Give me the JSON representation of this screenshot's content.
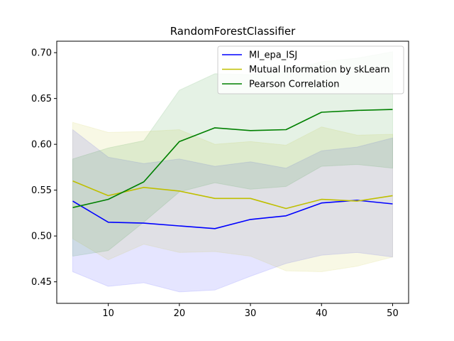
{
  "chart_data": {
    "type": "line",
    "title": "RandomForestClassifier",
    "xlabel": "",
    "ylabel": "",
    "xlim": [
      2.75,
      52.25
    ],
    "ylim": [
      0.4265,
      0.7125
    ],
    "x": [
      5,
      10,
      15,
      20,
      25,
      30,
      35,
      40,
      45,
      50
    ],
    "xticks": [
      10,
      20,
      30,
      40,
      50
    ],
    "yticks": [
      0.45,
      0.5,
      0.55,
      0.6,
      0.65,
      0.7
    ],
    "ytick_labels": [
      "0.45",
      "0.50",
      "0.55",
      "0.60",
      "0.65",
      "0.70"
    ],
    "grid": false,
    "legend_position": "top-right",
    "series": [
      {
        "name": "MI_epa_ISJ",
        "color": "#0000ff",
        "values": [
          0.538,
          0.515,
          0.514,
          0.511,
          0.508,
          0.518,
          0.522,
          0.536,
          0.539,
          0.535
        ],
        "lower": [
          0.461,
          0.445,
          0.449,
          0.439,
          0.441,
          0.456,
          0.47,
          0.479,
          0.482,
          0.477
        ],
        "upper": [
          0.616,
          0.586,
          0.579,
          0.584,
          0.576,
          0.581,
          0.574,
          0.593,
          0.597,
          0.607
        ]
      },
      {
        "name": "Mutual Information by skLearn",
        "color": "#bfbf00",
        "values": [
          0.56,
          0.544,
          0.553,
          0.549,
          0.541,
          0.541,
          0.53,
          0.54,
          0.538,
          0.544
        ],
        "lower": [
          0.497,
          0.474,
          0.491,
          0.482,
          0.483,
          0.478,
          0.462,
          0.461,
          0.467,
          0.477
        ],
        "upper": [
          0.624,
          0.613,
          0.614,
          0.616,
          0.6,
          0.603,
          0.599,
          0.619,
          0.61,
          0.611
        ]
      },
      {
        "name": "Pearson Correlation",
        "color": "#008000",
        "values": [
          0.531,
          0.54,
          0.559,
          0.603,
          0.618,
          0.615,
          0.616,
          0.635,
          0.637,
          0.638
        ],
        "lower": [
          0.478,
          0.484,
          0.515,
          0.548,
          0.558,
          0.551,
          0.554,
          0.576,
          0.578,
          0.574
        ],
        "upper": [
          0.584,
          0.596,
          0.604,
          0.659,
          0.677,
          0.676,
          0.68,
          0.69,
          0.694,
          0.701
        ]
      }
    ]
  }
}
